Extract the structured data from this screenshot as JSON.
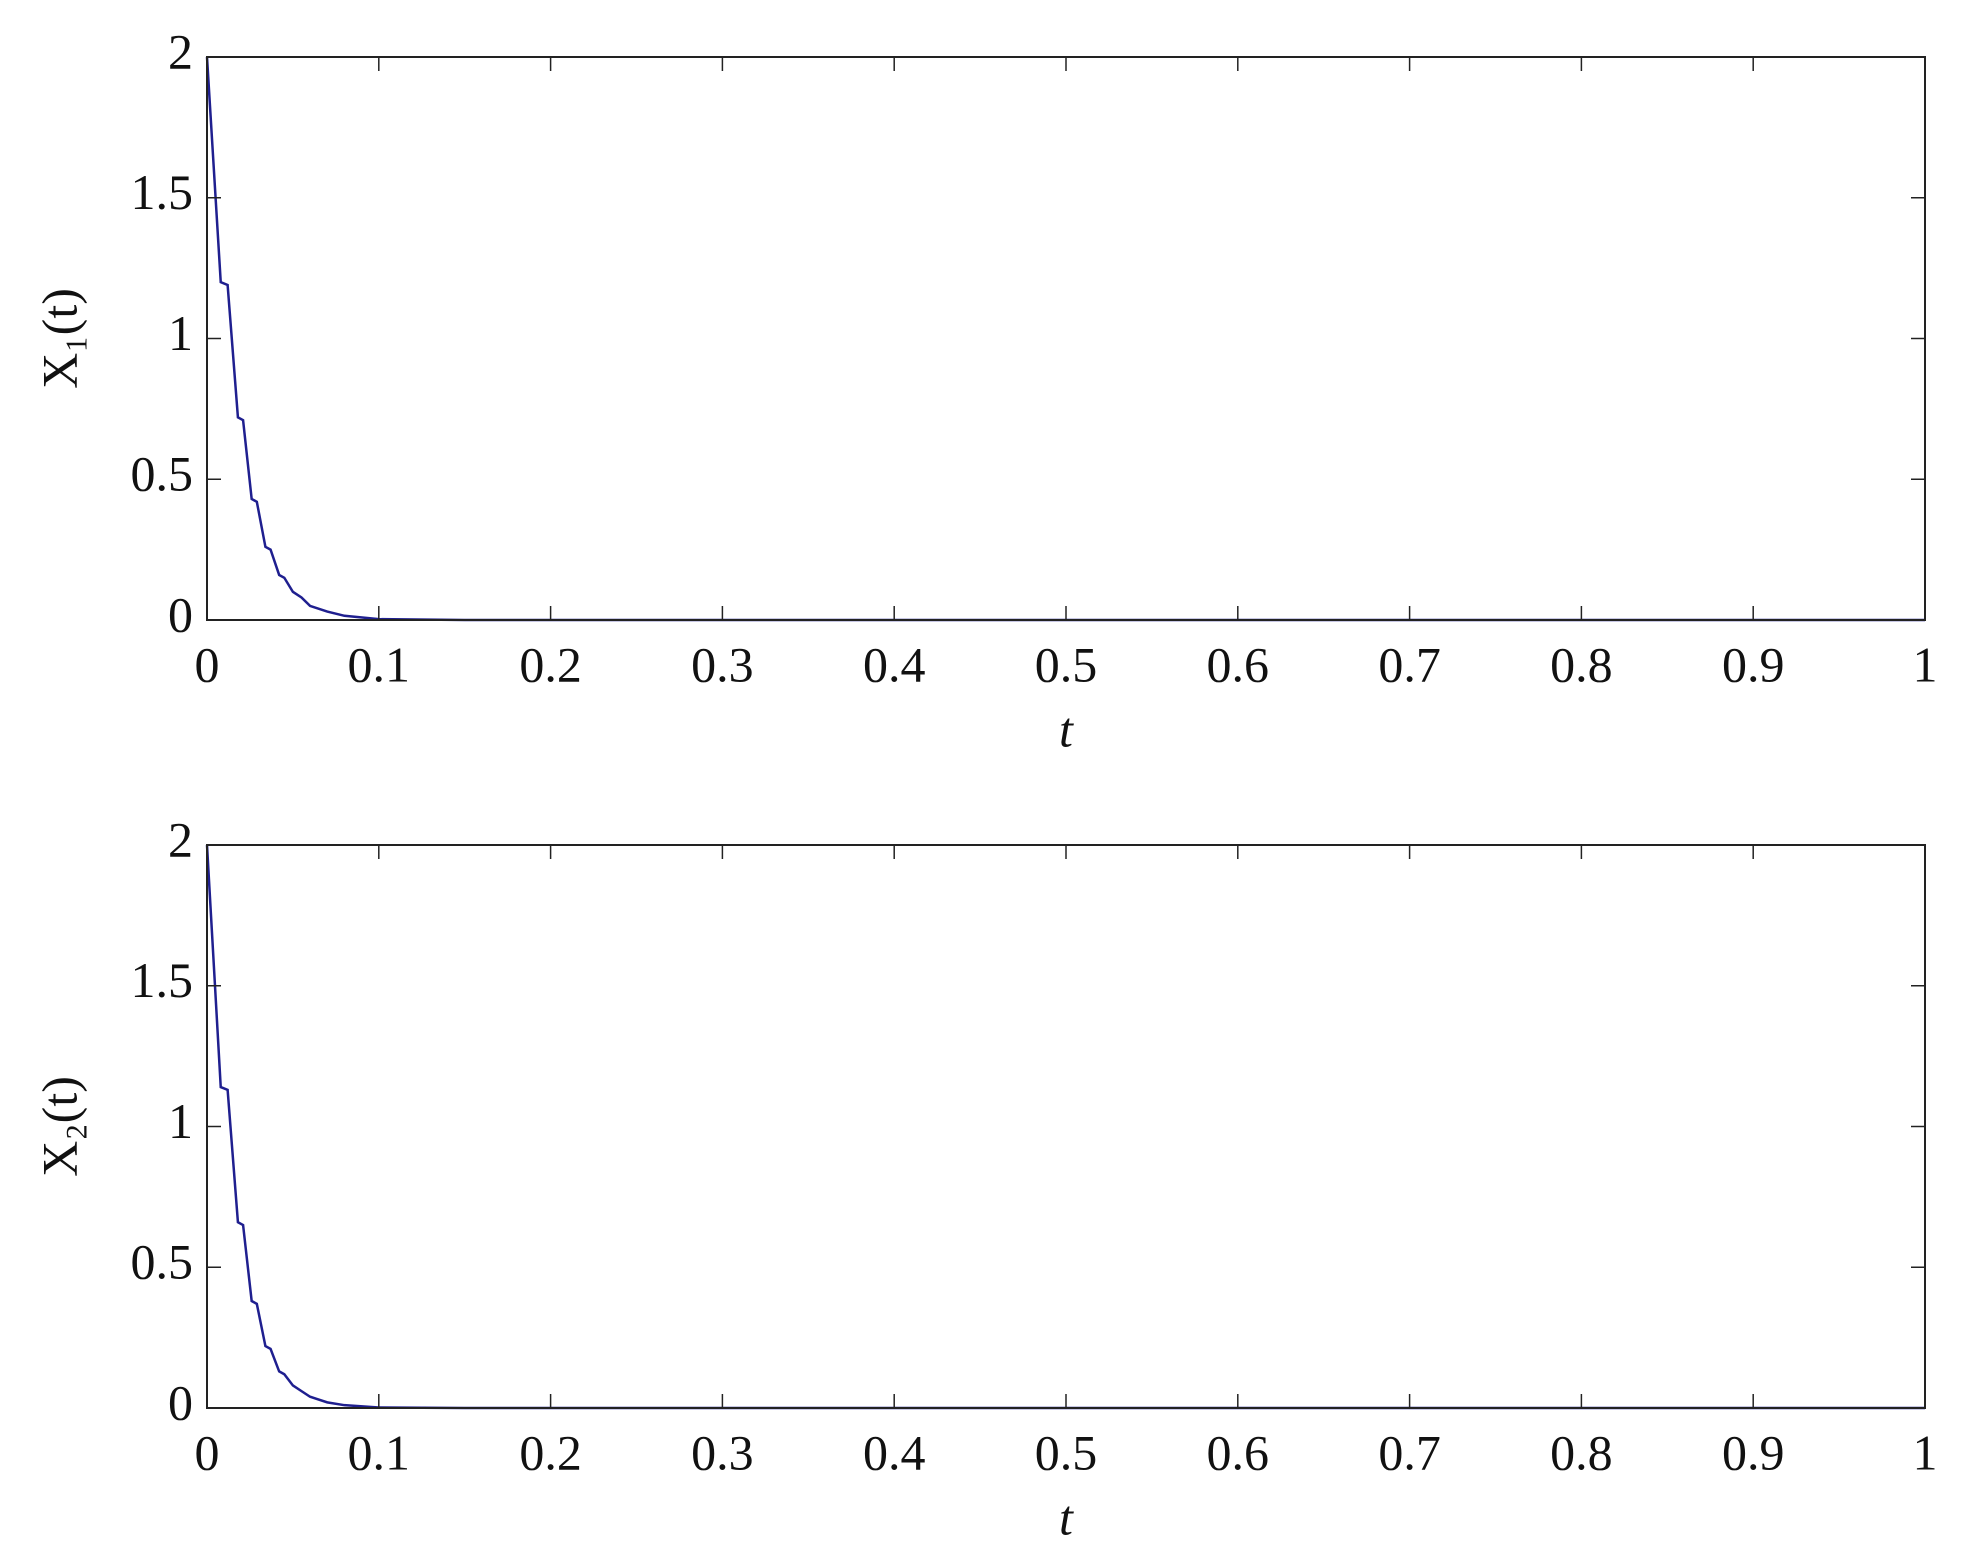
{
  "chart_data": [
    {
      "type": "line",
      "x_label": "t",
      "y_label": "X₁(t)",
      "xlim": [
        0,
        1
      ],
      "ylim": [
        0,
        2
      ],
      "xticks": [
        0,
        0.1,
        0.2,
        0.3,
        0.4,
        0.5,
        0.6,
        0.7,
        0.8,
        0.9,
        1
      ],
      "yticks": [
        0,
        0.5,
        1,
        1.5,
        2
      ],
      "x": [
        0,
        0.008,
        0.012,
        0.018,
        0.021,
        0.026,
        0.029,
        0.034,
        0.037,
        0.042,
        0.045,
        0.05,
        0.055,
        0.06,
        0.07,
        0.08,
        0.1,
        0.15,
        1
      ],
      "series": [
        {
          "color": "#1f1f8f",
          "values": [
            2,
            1.2,
            1.19,
            0.72,
            0.71,
            0.43,
            0.42,
            0.26,
            0.25,
            0.16,
            0.15,
            0.1,
            0.08,
            0.05,
            0.03,
            0.015,
            0.003,
            0,
            0
          ]
        }
      ]
    },
    {
      "type": "line",
      "x_label": "t",
      "y_label": "X₂(t)",
      "xlim": [
        0,
        1
      ],
      "ylim": [
        0,
        2
      ],
      "xticks": [
        0,
        0.1,
        0.2,
        0.3,
        0.4,
        0.5,
        0.6,
        0.7,
        0.8,
        0.9,
        1
      ],
      "yticks": [
        0,
        0.5,
        1,
        1.5,
        2
      ],
      "x": [
        0,
        0.008,
        0.012,
        0.018,
        0.021,
        0.026,
        0.029,
        0.034,
        0.037,
        0.042,
        0.045,
        0.05,
        0.055,
        0.06,
        0.07,
        0.08,
        0.1,
        0.15,
        1
      ],
      "series": [
        {
          "color": "#1f1f8f",
          "values": [
            2,
            1.14,
            1.13,
            0.66,
            0.65,
            0.38,
            0.37,
            0.22,
            0.21,
            0.13,
            0.12,
            0.08,
            0.06,
            0.04,
            0.02,
            0.01,
            0.002,
            0,
            0
          ]
        }
      ]
    }
  ]
}
